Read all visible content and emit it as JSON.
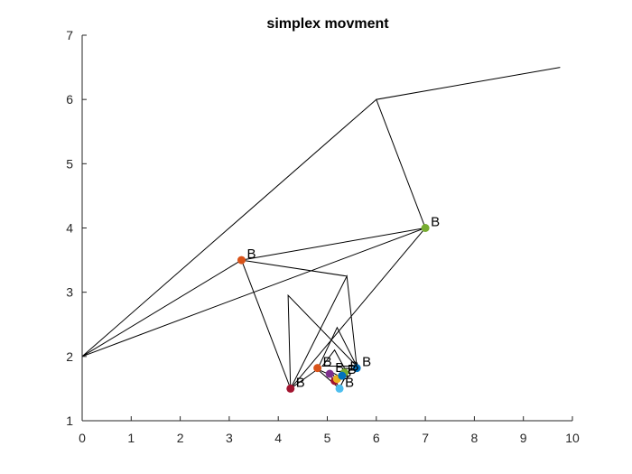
{
  "chart_data": {
    "type": "line",
    "title": "simplex movment",
    "xlabel": "",
    "ylabel": "",
    "xlim": [
      0,
      10
    ],
    "ylim": [
      1,
      7
    ],
    "xticks": [
      0,
      1,
      2,
      3,
      4,
      5,
      6,
      7,
      8,
      9,
      10
    ],
    "yticks": [
      1,
      2,
      3,
      4,
      5,
      6,
      7
    ],
    "grid": false,
    "line_color": "#000000",
    "simplex_path": [
      [
        0,
        2
      ],
      [
        6,
        6
      ],
      [
        9.75,
        6.5
      ],
      [
        6,
        6
      ],
      [
        7,
        4
      ],
      [
        3.25,
        3.5
      ],
      [
        0,
        2
      ],
      [
        7,
        4
      ],
      [
        4.25,
        1.5
      ],
      [
        3.25,
        3.5
      ],
      [
        5.4,
        3.25
      ],
      [
        4.25,
        1.5
      ],
      [
        5.4,
        3.25
      ],
      [
        5.6,
        1.85
      ],
      [
        4.2,
        2.95
      ],
      [
        4.25,
        1.5
      ],
      [
        4.8,
        1.8
      ],
      [
        5.2,
        2.45
      ],
      [
        5.6,
        1.85
      ],
      [
        4.9,
        1.85
      ],
      [
        5.15,
        2.1
      ],
      [
        5.4,
        1.75
      ],
      [
        5.25,
        1.5
      ],
      [
        4.8,
        1.8
      ],
      [
        5.05,
        1.72
      ],
      [
        5.25,
        1.52
      ],
      [
        5.35,
        1.65
      ],
      [
        5.1,
        1.75
      ],
      [
        5.2,
        1.6
      ],
      [
        5.3,
        1.7
      ],
      [
        5.4,
        1.75
      ],
      [
        5.6,
        1.85
      ]
    ],
    "points": [
      {
        "x": 7.0,
        "y": 4.0,
        "label": "B",
        "color": "#77ac30"
      },
      {
        "x": 3.25,
        "y": 3.5,
        "label": "B",
        "color": "#d95319"
      },
      {
        "x": 4.25,
        "y": 1.5,
        "label": "B",
        "color": "#a2142f"
      },
      {
        "x": 4.8,
        "y": 1.82,
        "label": "B",
        "color": "#d95319"
      },
      {
        "x": 5.6,
        "y": 1.82,
        "label": "B",
        "color": "#0072bd"
      },
      {
        "x": 5.25,
        "y": 1.5,
        "label": "B",
        "color": "#4dbeee"
      },
      {
        "x": 5.05,
        "y": 1.73,
        "label": "B",
        "color": "#7e2f8e"
      },
      {
        "x": 5.15,
        "y": 1.62,
        "label": "B",
        "color": "#a2142f"
      },
      {
        "x": 5.2,
        "y": 1.65,
        "label": "B",
        "color": "#edb120"
      },
      {
        "x": 5.35,
        "y": 1.75,
        "label": "B",
        "color": "#77ac30"
      },
      {
        "x": 5.3,
        "y": 1.7,
        "label": "B",
        "color": "#0072bd"
      }
    ]
  }
}
